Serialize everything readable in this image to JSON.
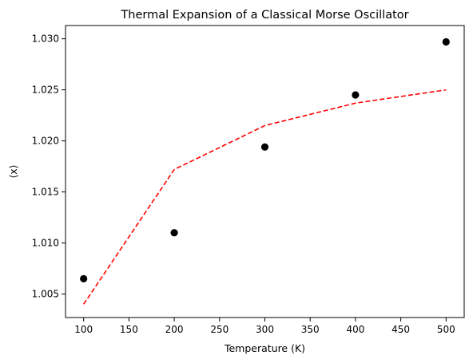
{
  "chart_data": {
    "type": "scatter",
    "title": "Thermal Expansion of a Classical Morse Oscillator",
    "xlabel": "Temperature (K)",
    "ylabel": "⟨x⟩",
    "xlim": [
      80,
      520
    ],
    "ylim": [
      1.0027,
      1.0313
    ],
    "grid": false,
    "legend": "none",
    "x_ticks": [
      100,
      150,
      200,
      250,
      300,
      350,
      400,
      450,
      500
    ],
    "x_tick_labels": [
      "100",
      "150",
      "200",
      "250",
      "300",
      "350",
      "400",
      "450",
      "500"
    ],
    "y_ticks": [
      1.005,
      1.01,
      1.015,
      1.02,
      1.025,
      1.03
    ],
    "y_tick_labels": [
      "1.005",
      "1.010",
      "1.015",
      "1.020",
      "1.025",
      "1.030"
    ],
    "series": [
      {
        "type": "scatter",
        "color": "#000000",
        "marker": "circle",
        "x": [
          100,
          200,
          300,
          400,
          500
        ],
        "y": [
          1.0065,
          1.011,
          1.0194,
          1.0245,
          1.0297
        ]
      },
      {
        "type": "line",
        "color": "#ff0000",
        "linestyle": "dashed",
        "x": [
          100,
          200,
          300,
          400,
          500
        ],
        "y": [
          1.004,
          1.0172,
          1.0215,
          1.0237,
          1.025
        ]
      }
    ]
  }
}
